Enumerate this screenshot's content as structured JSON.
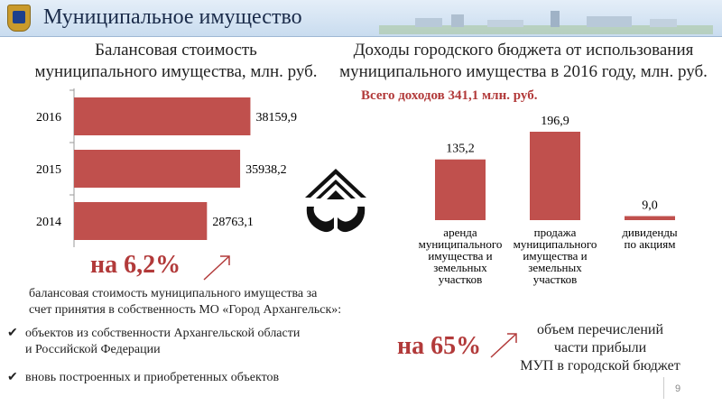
{
  "header": {
    "title": "Муниципальное имущество"
  },
  "left_chart": {
    "title_line1": "Балансовая  стоимость",
    "title_line2": "муниципального имущества, млн. руб."
  },
  "right_chart": {
    "title_line1": "Доходы городского бюджета от использования",
    "title_line2": "муниципального имущества в 2016 году, млн. руб.",
    "total": "Всего доходов 341,1 млн. руб."
  },
  "chart_data": [
    {
      "type": "bar",
      "orientation": "horizontal",
      "categories": [
        "2016",
        "2015",
        "2014"
      ],
      "values": [
        38159.9,
        35938.2,
        28763.1
      ],
      "value_labels": [
        "38159,9",
        "35938,2",
        "28763,1"
      ],
      "title": "Балансовая  стоимость муниципального имущества, млн. руб.",
      "color": "#c0504d",
      "grid": false
    },
    {
      "type": "bar",
      "orientation": "vertical",
      "categories": [
        "аренда муниципального имущества и земельных участков",
        "продажа муниципального имущества и земельных участков",
        "дивиденды по акциям"
      ],
      "category_lines": [
        [
          "аренда",
          "муниципального",
          "имущества и",
          "земельных",
          "участков"
        ],
        [
          "продажа",
          "муниципального",
          "имущества и",
          "земельных",
          "участков"
        ],
        [
          "дивиденды",
          "по акциям"
        ]
      ],
      "values": [
        135.2,
        196.9,
        9.0
      ],
      "value_labels": [
        "135,2",
        "196,9",
        "9,0"
      ],
      "title": "Доходы городского бюджета от использования муниципального имущества в 2016 году, млн. руб.",
      "color": "#c0504d",
      "grid": false
    }
  ],
  "growth_left": {
    "percent": "на 6,2%",
    "note_line1": "балансовая стоимость муниципального имущества за",
    "note_line2": "счет принятия в собственность МО «Город Архангельск»:",
    "bullets": [
      {
        "line1": "объектов из собственности Архангельской области",
        "line2": "и Российской Федерации"
      },
      {
        "line1": "вновь построенных и приобретенных  объектов",
        "line2": ""
      }
    ]
  },
  "growth_right": {
    "percent": "на 65%",
    "text_line1": "объем перечислений",
    "text_line2": "части прибыли",
    "text_line3": "МУП в городской бюджет"
  },
  "page_number": "9",
  "icons": {
    "crest": "city-crest-icon",
    "logo": "property-house-hands-icon",
    "check": "checkmark-icon",
    "arrow": "up-arrow-icon"
  },
  "colors": {
    "bar": "#c0504d",
    "accent_text": "#b23a3a",
    "header_bg": "#d6e4f2"
  }
}
